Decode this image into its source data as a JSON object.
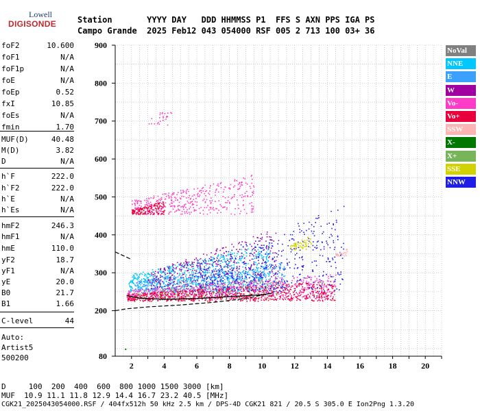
{
  "logo": {
    "brand": "Lowell",
    "product": "DIGISONDE"
  },
  "header": {
    "line1": "Station       YYYY DAY   DDD HHMMSS P1  FFS S AXN PPS IGA PS",
    "line2": "Campo Grande  2025 Feb12 043 054000 RSF 005 2 713 100 03+ 36"
  },
  "params": [
    {
      "name": "foF2",
      "value": "10.600"
    },
    {
      "name": "foF1",
      "value": "N/A"
    },
    {
      "name": "foF1p",
      "value": "N/A"
    },
    {
      "name": "foE",
      "value": "N/A"
    },
    {
      "name": "foEp",
      "value": "0.52"
    },
    {
      "name": "fxI",
      "value": "10.85"
    },
    {
      "name": "foEs",
      "value": "N/A"
    },
    {
      "name": "fmin",
      "value": "1.70"
    },
    {
      "name": "MUF(D)",
      "value": "40.48"
    },
    {
      "name": "M(D)",
      "value": "3.82"
    },
    {
      "name": "D",
      "value": "N/A"
    },
    {
      "name": "h`F",
      "value": "222.0"
    },
    {
      "name": "h`F2",
      "value": "222.0"
    },
    {
      "name": "h`E",
      "value": "N/A"
    },
    {
      "name": "h`Es",
      "value": "N/A"
    },
    {
      "name": "hmF2",
      "value": "246.3"
    },
    {
      "name": "hmF1",
      "value": "N/A"
    },
    {
      "name": "hmE",
      "value": "110.0"
    },
    {
      "name": "yF2",
      "value": "18.7"
    },
    {
      "name": "yF1",
      "value": "N/A"
    },
    {
      "name": "yE",
      "value": "20.0"
    },
    {
      "name": "B0",
      "value": "21.7"
    },
    {
      "name": "B1",
      "value": "1.66"
    },
    {
      "name": "C-level",
      "value": "44"
    }
  ],
  "auto": {
    "line1": "Auto:",
    "line2": "Artist5",
    "line3": "500200"
  },
  "bottom": {
    "d_line": "D     100  200  400  600  800 1000 1500 3000 [km]",
    "muf_line": "MUF  10.9 11.1 11.8 12.9 14.4 16.7 23.2 40.5 [MHz]",
    "file_line": "CGK21_2025043054000.RSF / 404fx512h 50 kHz 2.5 km / DPS-4D CGK21 821 / 20.5 S 305.0 E Ion2Png 1.3.20"
  },
  "legend": [
    {
      "label": "NoVal",
      "color": "#808080"
    },
    {
      "label": "NNE",
      "color": "#00c8ff"
    },
    {
      "label": "E",
      "color": "#3ca0ff"
    },
    {
      "label": "W",
      "color": "#a000a0"
    },
    {
      "label": "Vo-",
      "color": "#ff3cc8"
    },
    {
      "label": "Vo+",
      "color": "#e8003c"
    },
    {
      "label": "SSW",
      "color": "#ffb4b4"
    },
    {
      "label": "X-",
      "color": "#007800"
    },
    {
      "label": "X+",
      "color": "#78b45a"
    },
    {
      "label": "SSE",
      "color": "#d2d200"
    },
    {
      "label": "NNW",
      "color": "#1e1ee6"
    }
  ],
  "chart_data": {
    "type": "scatter",
    "x_unit": "MHz",
    "y_unit": "km",
    "xlim": [
      1,
      21
    ],
    "ylim": [
      80,
      900
    ],
    "x_ticks": [
      2,
      4,
      6,
      8,
      10,
      12,
      14,
      16,
      18,
      20
    ],
    "y_ticks": [
      80,
      200,
      300,
      400,
      500,
      600,
      700,
      800,
      900
    ],
    "grid": true,
    "legend_position": "right",
    "trace_curve": [
      [
        1.7,
        240
      ],
      [
        2.5,
        233
      ],
      [
        4,
        230
      ],
      [
        6,
        232
      ],
      [
        8,
        237
      ],
      [
        10,
        242
      ],
      [
        10.6,
        246
      ]
    ],
    "dashed_curve": [
      [
        1,
        200
      ],
      [
        1.7,
        205
      ],
      [
        3,
        210
      ],
      [
        5,
        215
      ],
      [
        7,
        222
      ],
      [
        9,
        232
      ],
      [
        10.4,
        245
      ]
    ],
    "upper_dashed": [
      [
        1,
        355
      ],
      [
        2,
        335
      ]
    ],
    "clusters": [
      {
        "name": "NNE",
        "x0": 1.8,
        "x1": 10.5,
        "y0": 250,
        "y1": 380,
        "n": 900
      },
      {
        "name": "E",
        "x0": 2.2,
        "x1": 11.5,
        "y0": 255,
        "y1": 330,
        "n": 500
      },
      {
        "name": "W",
        "x0": 3,
        "x1": 11,
        "y0": 240,
        "y1": 420,
        "n": 500
      },
      {
        "name": "Vo-",
        "x0": 1.7,
        "x1": 14.5,
        "y0": 230,
        "y1": 300,
        "n": 700
      },
      {
        "name": "Vo+",
        "x0": 1.7,
        "x1": 14.5,
        "y0": 226,
        "y1": 280,
        "n": 700
      },
      {
        "name": "NNW",
        "x0": 6,
        "x1": 15,
        "y0": 250,
        "y1": 480,
        "n": 450
      },
      {
        "name": "SSE",
        "x0": 11.7,
        "x1": 13,
        "y0": 360,
        "y1": 400,
        "n": 60
      },
      {
        "name": "X+",
        "x0": 2,
        "x1": 11,
        "y0": 230,
        "y1": 290,
        "n": 120
      },
      {
        "name": "SSW",
        "x0": 14.5,
        "x1": 15.2,
        "y0": 345,
        "y1": 365,
        "n": 30
      },
      {
        "name": "Vo-",
        "x0": 2,
        "x1": 9.5,
        "y0": 455,
        "y1": 560,
        "n": 400
      },
      {
        "name": "Vo+",
        "x0": 2,
        "x1": 4,
        "y0": 455,
        "y1": 490,
        "n": 150
      },
      {
        "name": "Vo-",
        "x0": 3,
        "x1": 4.5,
        "y0": 690,
        "y1": 740,
        "n": 25
      }
    ]
  }
}
